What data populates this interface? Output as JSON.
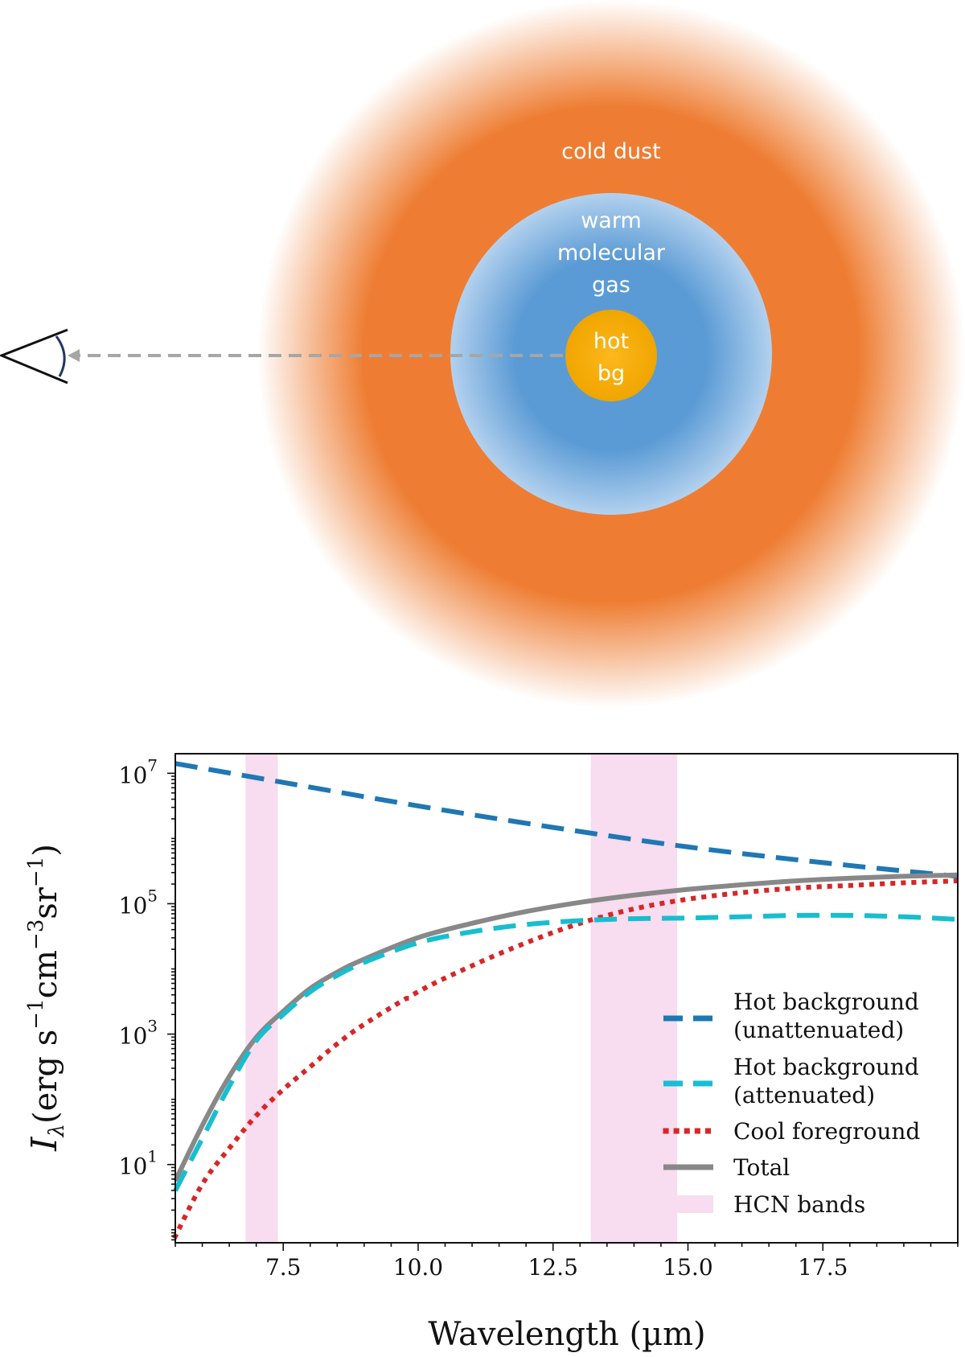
{
  "diagram": {
    "zones": {
      "outer": "cold dust",
      "middle_line1": "warm",
      "middle_line2": "molecular",
      "middle_line3": "gas",
      "core_line1": "hot",
      "core_line2": "bg"
    },
    "colors": {
      "cold_dust": "#ee7d33",
      "warm_gas": "#5b9bd5",
      "warm_gas_edge": "#b3d1ee",
      "hot_bg": "#fdb81c",
      "hot_bg_edge": "#f0a500",
      "sightline": "#a6a6a6",
      "eye_outline": "#111111",
      "eye_lens": "#1f3864"
    },
    "icons": {
      "observer": "eye-icon",
      "sightline": "dashed-arrow-icon"
    }
  },
  "chart_data": {
    "type": "line",
    "xlabel": "Wavelength (µm)",
    "ylabel_symbol": "I",
    "ylabel_subscript": "λ",
    "ylabel_units_open": "(erg s",
    "ylabel_units_cm": "cm",
    "ylabel_units_sr": "sr",
    "ylabel_units_close": ")",
    "ylabel_exp_s": "−1",
    "ylabel_exp_cm": "−3",
    "ylabel_exp_sr": "−1",
    "xlim": [
      5.5,
      20.0
    ],
    "ylim_log10": [
      -0.2,
      7.3
    ],
    "yscale": "log",
    "grid": false,
    "legend_position": "lower-right",
    "x_ticks": [
      {
        "value": 7.5,
        "label": "7.5"
      },
      {
        "value": 10.0,
        "label": "10.0"
      },
      {
        "value": 12.5,
        "label": "12.5"
      },
      {
        "value": 15.0,
        "label": "15.0"
      },
      {
        "value": 17.5,
        "label": "17.5"
      }
    ],
    "y_ticks": [
      {
        "log10": 1,
        "base": "10",
        "exp": "1"
      },
      {
        "log10": 3,
        "base": "10",
        "exp": "3"
      },
      {
        "log10": 5,
        "base": "10",
        "exp": "5"
      },
      {
        "log10": 7,
        "base": "10",
        "exp": "7"
      }
    ],
    "bands": {
      "label": "HCN bands",
      "color": "#f8dcef",
      "ranges": [
        [
          6.8,
          7.4
        ],
        [
          13.2,
          14.8
        ]
      ]
    },
    "series": [
      {
        "id": "hot-unattenuated",
        "legend_line1": "Hot background",
        "legend_line2": "(unattenuated)",
        "color": "#1f77b4",
        "style": "dashed",
        "x": [
          5.5,
          7.5,
          10.0,
          12.5,
          15.0,
          17.5,
          20.0
        ],
        "y_log10": [
          7.15,
          6.86,
          6.5,
          6.17,
          5.87,
          5.63,
          5.42
        ]
      },
      {
        "id": "hot-attenuated",
        "legend_line1": "Hot background",
        "legend_line2": "(attenuated)",
        "color": "#17becf",
        "style": "dashed",
        "x": [
          5.5,
          6.0,
          6.5,
          7.0,
          7.5,
          8.0,
          8.5,
          9.0,
          10.0,
          11.0,
          12.0,
          13.0,
          14.0,
          15.0,
          16.0,
          17.0,
          18.0,
          19.0,
          20.0
        ],
        "y_log10": [
          0.6,
          1.4,
          2.2,
          2.9,
          3.3,
          3.65,
          3.9,
          4.1,
          4.4,
          4.57,
          4.68,
          4.74,
          4.77,
          4.78,
          4.8,
          4.82,
          4.82,
          4.8,
          4.76
        ]
      },
      {
        "id": "cool-foreground",
        "legend_line1": "Cool foreground",
        "legend_line2": "",
        "color": "#d62728",
        "style": "dotted",
        "x": [
          5.5,
          6.0,
          6.5,
          7.0,
          7.5,
          8.0,
          8.5,
          9.0,
          10.0,
          11.0,
          12.0,
          13.0,
          14.0,
          15.0,
          16.0,
          17.0,
          18.0,
          19.0,
          20.0
        ],
        "y_log10": [
          -0.1,
          0.7,
          1.25,
          1.75,
          2.15,
          2.5,
          2.85,
          3.15,
          3.65,
          4.05,
          4.4,
          4.7,
          4.92,
          5.07,
          5.17,
          5.24,
          5.28,
          5.32,
          5.35
        ]
      },
      {
        "id": "total",
        "legend_line1": "Total",
        "legend_line2": "",
        "color": "#888888",
        "style": "solid",
        "x": [
          5.5,
          6.0,
          6.5,
          7.0,
          7.5,
          8.0,
          8.5,
          9.0,
          10.0,
          11.0,
          12.0,
          13.0,
          14.0,
          15.0,
          16.0,
          17.0,
          18.0,
          19.0,
          20.0
        ],
        "y_log10": [
          0.75,
          1.6,
          2.35,
          2.95,
          3.35,
          3.7,
          3.95,
          4.15,
          4.48,
          4.7,
          4.88,
          5.02,
          5.13,
          5.22,
          5.29,
          5.35,
          5.39,
          5.42,
          5.44
        ]
      }
    ]
  }
}
